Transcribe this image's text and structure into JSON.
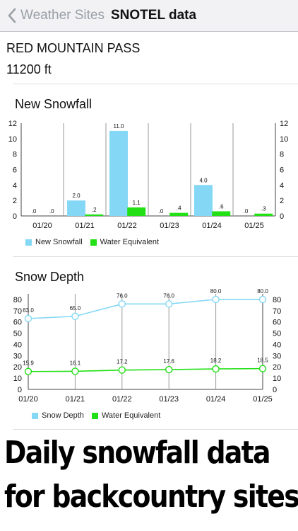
{
  "nav": {
    "back_label": "Weather Sites",
    "title": "SNOTEL data"
  },
  "site": {
    "name": "RED MOUNTAIN PASS",
    "elevation": "11200 ft"
  },
  "colors": {
    "snow": "#85d8f5",
    "water": "#22e015",
    "nav_back": "#9aa0a6"
  },
  "snowfall": {
    "title": "New Snowfall",
    "legend": [
      "New Snowfall",
      "Water Equivalent"
    ]
  },
  "depth": {
    "title": "Snow Depth",
    "legend": [
      "Snow Depth",
      "Water Equivalent"
    ]
  },
  "promo": {
    "line1": "Daily snowfall data",
    "line2": "for backcountry sites"
  },
  "chart_data": [
    {
      "type": "bar",
      "title": "New Snowfall",
      "categories": [
        "01/20",
        "01/21",
        "01/22",
        "01/23",
        "01/24",
        "01/25"
      ],
      "series": [
        {
          "name": "New Snowfall",
          "values": [
            0,
            2.0,
            11.0,
            0,
            4.0,
            0
          ],
          "labels": [
            ".0",
            "2.0",
            "11.0",
            ".0",
            "4.0",
            ".0"
          ]
        },
        {
          "name": "Water Equivalent",
          "values": [
            0,
            0.2,
            1.1,
            0.4,
            0.6,
            0.3
          ],
          "labels": [
            ".0",
            ".2",
            "1.1",
            ".4",
            ".6",
            ".3"
          ]
        }
      ],
      "ylim": [
        0,
        12
      ],
      "yticks": [
        "0",
        "2",
        "4",
        "6",
        "8",
        "10",
        "12"
      ],
      "legend_position": "bottom-left"
    },
    {
      "type": "line",
      "title": "Snow Depth",
      "categories": [
        "01/20",
        "01/21",
        "01/22",
        "01/23",
        "01/24",
        "01/25"
      ],
      "series": [
        {
          "name": "Snow Depth",
          "values": [
            63.0,
            65.0,
            76.0,
            76.0,
            80.0,
            80.0
          ],
          "labels": [
            "63.0",
            "65.0",
            "76.0",
            "76.0",
            "80.0",
            "80.0"
          ]
        },
        {
          "name": "Water Equivalent",
          "values": [
            15.9,
            16.1,
            17.2,
            17.6,
            18.2,
            18.5
          ],
          "labels": [
            "15.9",
            "16.1",
            "17.2",
            "17.6",
            "18.2",
            "18.5"
          ]
        }
      ],
      "ylim": [
        0,
        85
      ],
      "yticks": [
        "0",
        "10",
        "20",
        "30",
        "40",
        "50",
        "60",
        "70",
        "80"
      ],
      "legend_position": "bottom-left"
    }
  ]
}
